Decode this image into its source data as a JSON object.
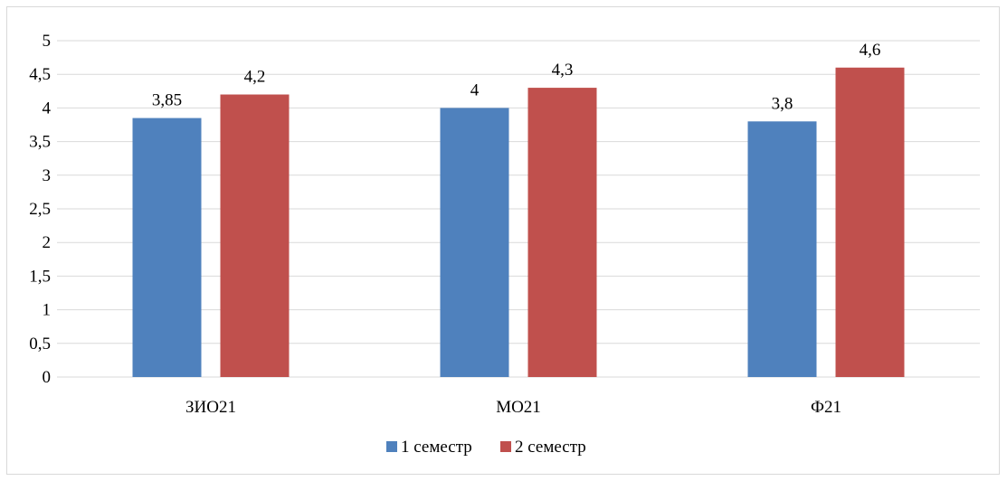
{
  "chart_data": {
    "type": "bar",
    "categories": [
      "ЗИО21",
      "МО21",
      "Ф21"
    ],
    "series": [
      {
        "name": "1 семестр",
        "values": [
          3.85,
          4,
          3.8
        ],
        "labels": [
          "3,85",
          "4",
          "3,8"
        ]
      },
      {
        "name": "2 семестр",
        "values": [
          4.2,
          4.3,
          4.6
        ],
        "labels": [
          "4,2",
          "4,3",
          "4,6"
        ]
      }
    ],
    "ylim": [
      0,
      5
    ],
    "yticks": [
      0,
      0.5,
      1,
      1.5,
      2,
      2.5,
      3,
      3.5,
      4,
      4.5,
      5
    ],
    "ytick_labels": [
      "0",
      "0,5",
      "1",
      "1,5",
      "2",
      "2,5",
      "3",
      "3,5",
      "4",
      "4,5",
      "5"
    ],
    "title": "",
    "xlabel": "",
    "ylabel": "",
    "grid": true,
    "legend": "bottom-center",
    "colors": {
      "series_1": "#4f81bd",
      "series_2": "#c0504d",
      "grid": "#d9d9d9",
      "frame": "#d9d9d9"
    }
  }
}
